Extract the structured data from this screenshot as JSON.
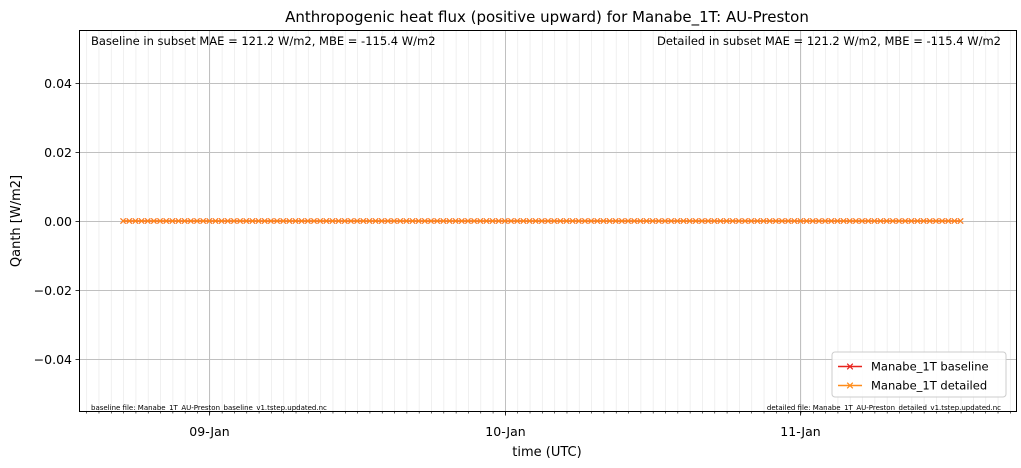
{
  "chart_data": {
    "type": "line",
    "title": "Anthropogenic heat flux (positive upward) for Manabe_1T: AU-Preston",
    "xlabel": "time (UTC)",
    "ylabel": "Qanth [W/m2]",
    "x_start": "2004-01-08T17:00",
    "x_end": "2004-01-11T13:00",
    "step_minutes": 30,
    "xlim": [
      "2004-01-08T13:30",
      "2004-01-11T17:30"
    ],
    "ylim": [
      -0.055,
      0.055
    ],
    "x_ticks": [
      {
        "value": "2004-01-09T00:00",
        "label": "09-Jan"
      },
      {
        "value": "2004-01-10T00:00",
        "label": "10-Jan"
      },
      {
        "value": "2004-01-11T00:00",
        "label": "11-Jan"
      }
    ],
    "y_ticks": [
      {
        "value": 0.04,
        "label": "0.04"
      },
      {
        "value": 0.02,
        "label": "0.02"
      },
      {
        "value": 0.0,
        "label": "0.00"
      },
      {
        "value": -0.02,
        "label": "−0.02"
      },
      {
        "value": -0.04,
        "label": "−0.04"
      }
    ],
    "grid": true,
    "legend_position": "lower-right",
    "series": [
      {
        "name": "Manabe_1T baseline",
        "color": "#e8221c",
        "marker": "x",
        "constant_value": 0.0
      },
      {
        "name": "Manabe_1T detailed",
        "color": "#ff8c1a",
        "marker": "x",
        "constant_value": 0.0
      }
    ],
    "annotations": {
      "baseline_stats": "Baseline in subset MAE = 121.2 W/m2, MBE = -115.4 W/m2",
      "detailed_stats": "Detailed in subset MAE = 121.2 W/m2, MBE = -115.4 W/m2",
      "baseline_file": "baseline file: Manabe_1T_AU-Preston_baseline_v1.tstep.updated.nc",
      "detailed_file": "detailed file: Manabe_1T_AU-Preston_detailed_v1.tstep.updated.nc"
    }
  }
}
